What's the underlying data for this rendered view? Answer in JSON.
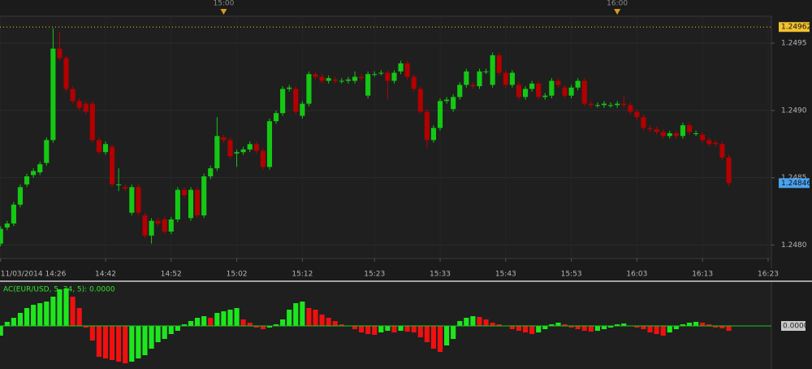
{
  "chart_data": [
    {
      "type": "candlestick",
      "xlim": [
        -0.09,
        117.5
      ],
      "ylim": [
        1.2479,
        1.2497
      ],
      "yticks": [
        {
          "value": 1.248,
          "label": "1.2480"
        },
        {
          "value": 1.2485,
          "label": "1.2485"
        },
        {
          "value": 1.249,
          "label": "1.2490"
        },
        1.2495
      ],
      "xticks": [
        {
          "value": 0,
          "label": "11/03/2014 14:26"
        },
        {
          "value": 16,
          "label": "14:42"
        },
        {
          "value": 26,
          "label": "14:52"
        },
        {
          "value": 36,
          "label": "15:02"
        },
        {
          "value": 46,
          "label": "15:12"
        },
        {
          "value": 57,
          "label": "15:23"
        },
        {
          "value": 67,
          "label": "15:33"
        },
        {
          "value": 77,
          "label": "15:43"
        },
        {
          "value": 87,
          "label": "15:53"
        },
        {
          "value": 97,
          "label": "16:03"
        },
        {
          "value": 107,
          "label": "16:13"
        },
        {
          "value": 117,
          "label": "16:23"
        }
      ],
      "top_markers": [
        {
          "value": 34,
          "label": "15:00"
        },
        {
          "value": 94,
          "label": "16:00"
        }
      ],
      "price_lines": [
        {
          "value": 1.24962,
          "color": "#f2c230",
          "dotted": true
        },
        {
          "value": 1.24846,
          "color": "#4aa3ef",
          "dotted": false
        }
      ],
      "grid": true,
      "up_color": "#14c814",
      "down_color": "#b30000",
      "open": [
        1.24801,
        1.24813,
        1.24816,
        1.2483,
        1.24845,
        1.24852,
        1.24854,
        1.24861,
        1.24878,
        1.24946,
        1.24939,
        1.24916,
        1.24907,
        1.24905,
        1.24905,
        1.24878,
        1.24869,
        1.24873,
        1.24845,
        1.24843,
        1.24824,
        1.24843,
        1.24822,
        1.24807,
        1.24818,
        1.24819,
        1.2481,
        1.24819,
        1.24841,
        1.2482,
        1.24841,
        1.24822,
        1.24851,
        1.24857,
        1.2488,
        1.24878,
        1.24868,
        1.24869,
        1.24871,
        1.24875,
        1.2487,
        1.24858,
        1.24892,
        1.24898,
        1.24916,
        1.24916,
        1.24896,
        1.24905,
        1.24927,
        1.24925,
        1.24922,
        1.24923,
        1.24922,
        1.24922,
        1.24922,
        1.24925,
        1.24911,
        1.24927,
        1.24928,
        1.24928,
        1.24922,
        1.24929,
        1.24935,
        1.24925,
        1.24916,
        1.24899,
        1.24878,
        1.24887,
        1.24907,
        1.24901,
        1.2491,
        1.24919,
        1.24919,
        1.24918,
        1.24929,
        1.24919,
        1.24941,
        1.24928,
        1.24919,
        1.24919,
        1.2491,
        1.24916,
        1.2492,
        1.2491,
        1.24911,
        1.24922,
        1.24917,
        1.24911,
        1.24917,
        1.24922,
        1.24905,
        1.24904,
        1.24904,
        1.24904,
        1.24904,
        1.24905,
        1.24904,
        1.24899,
        1.24895,
        1.24887,
        1.24886,
        1.24884,
        1.24881,
        1.24883,
        1.24881,
        1.24889,
        1.24883,
        1.24882,
        1.24878,
        1.24876,
        1.24875,
        1.24865
      ],
      "high": [
        1.24814,
        1.24818,
        1.24832,
        1.24845,
        1.24853,
        1.24857,
        1.24862,
        1.2488,
        1.24961,
        1.24958,
        1.24941,
        1.24918,
        1.24909,
        1.24907,
        1.24907,
        1.2488,
        1.24877,
        1.24875,
        1.24857,
        1.24845,
        1.24845,
        1.24845,
        1.24824,
        1.2482,
        1.2482,
        1.24821,
        1.24821,
        1.24843,
        1.24843,
        1.24843,
        1.24843,
        1.24853,
        1.24859,
        1.24895,
        1.24882,
        1.2488,
        1.24871,
        1.24873,
        1.24877,
        1.24877,
        1.24872,
        1.24894,
        1.249,
        1.24918,
        1.24919,
        1.24918,
        1.24907,
        1.24929,
        1.24929,
        1.24927,
        1.24926,
        1.24925,
        1.24924,
        1.24925,
        1.24929,
        1.24927,
        1.24929,
        1.24929,
        1.2493,
        1.2493,
        1.2493,
        1.24937,
        1.24937,
        1.24927,
        1.24918,
        1.24901,
        1.24889,
        1.24909,
        1.2491,
        1.24912,
        1.24921,
        1.24931,
        1.24921,
        1.24931,
        1.24931,
        1.24943,
        1.24943,
        1.2493,
        1.2493,
        1.24921,
        1.24918,
        1.24922,
        1.24922,
        1.24913,
        1.24924,
        1.24924,
        1.24919,
        1.24919,
        1.24924,
        1.24924,
        1.24907,
        1.24906,
        1.24907,
        1.24906,
        1.24907,
        1.24911,
        1.24906,
        1.24901,
        1.24897,
        1.24889,
        1.24888,
        1.24886,
        1.24885,
        1.24885,
        1.24891,
        1.24891,
        1.24885,
        1.24884,
        1.2488,
        1.24878,
        1.24877,
        1.24867
      ],
      "low": [
        1.24799,
        1.24811,
        1.24814,
        1.24828,
        1.24843,
        1.2485,
        1.24852,
        1.24859,
        1.24876,
        1.24937,
        1.24914,
        1.24905,
        1.249,
        1.24897,
        1.24876,
        1.24867,
        1.24867,
        1.24843,
        1.2484,
        1.2484,
        1.24822,
        1.24822,
        1.24805,
        1.24801,
        1.24814,
        1.24808,
        1.24808,
        1.24817,
        1.24835,
        1.24818,
        1.2482,
        1.2482,
        1.24849,
        1.24855,
        1.24876,
        1.24864,
        1.24858,
        1.24867,
        1.24869,
        1.24868,
        1.24856,
        1.24856,
        1.2489,
        1.24896,
        1.24914,
        1.24897,
        1.24894,
        1.24903,
        1.24923,
        1.2492,
        1.2492,
        1.2492,
        1.2492,
        1.2492,
        1.2492,
        1.24922,
        1.24909,
        1.24925,
        1.24926,
        1.24908,
        1.2492,
        1.24927,
        1.24923,
        1.24914,
        1.24897,
        1.24872,
        1.24876,
        1.24885,
        1.24905,
        1.24899,
        1.24908,
        1.24917,
        1.24916,
        1.24916,
        1.24927,
        1.24917,
        1.24926,
        1.24917,
        1.24917,
        1.24908,
        1.24908,
        1.24914,
        1.24908,
        1.24908,
        1.24909,
        1.24917,
        1.24909,
        1.24909,
        1.24915,
        1.24903,
        1.24902,
        1.24902,
        1.24902,
        1.24902,
        1.24902,
        1.24902,
        1.24897,
        1.24893,
        1.24885,
        1.24884,
        1.24882,
        1.24879,
        1.24879,
        1.24879,
        1.24879,
        1.24882,
        1.24881,
        1.24876,
        1.24873,
        1.24873,
        1.24863,
        1.24844
      ],
      "close": [
        1.24812,
        1.24816,
        1.2483,
        1.24843,
        1.24851,
        1.24855,
        1.2486,
        1.24878,
        1.24946,
        1.24939,
        1.24916,
        1.24907,
        1.24902,
        1.24899,
        1.24878,
        1.24869,
        1.24875,
        1.24845,
        1.24845,
        1.24842,
        1.24843,
        1.24824,
        1.24807,
        1.24818,
        1.24816,
        1.2481,
        1.24819,
        1.24841,
        1.24837,
        1.24841,
        1.24822,
        1.24851,
        1.24857,
        1.24881,
        1.24878,
        1.24866,
        1.24869,
        1.24871,
        1.24875,
        1.2487,
        1.24858,
        1.24892,
        1.24898,
        1.24916,
        1.24917,
        1.24899,
        1.24905,
        1.24927,
        1.24925,
        1.24922,
        1.24924,
        1.24922,
        1.24922,
        1.24923,
        1.24925,
        1.24924,
        1.24927,
        1.24927,
        1.24928,
        1.24922,
        1.24928,
        1.24935,
        1.24925,
        1.24916,
        1.24899,
        1.24878,
        1.24887,
        1.24907,
        1.24908,
        1.2491,
        1.24919,
        1.24929,
        1.24918,
        1.24929,
        1.24929,
        1.24941,
        1.24928,
        1.24919,
        1.24928,
        1.2491,
        1.24916,
        1.2492,
        1.2491,
        1.24911,
        1.24922,
        1.24919,
        1.24911,
        1.24917,
        1.24922,
        1.24905,
        1.24904,
        1.24904,
        1.24905,
        1.24904,
        1.24905,
        1.24904,
        1.24899,
        1.24895,
        1.24887,
        1.24886,
        1.24884,
        1.24881,
        1.24883,
        1.24881,
        1.24889,
        1.24884,
        1.24883,
        1.24878,
        1.24875,
        1.24875,
        1.24865,
        1.24846
      ]
    },
    {
      "type": "histogram-oscillator",
      "title": "AC(EUR/USD, 5, 34, 5): 0.0000",
      "xlim": [
        -0.09,
        117.5
      ],
      "ylim": [
        -0.000106,
        0.000108
      ],
      "yticks": [
        {
          "value": 0,
          "label": "0.0000"
        }
      ],
      "up_color": "#1ee61e",
      "down_color": "#f01010",
      "zero_color": "#19c819",
      "values": [
        -2.4e-05,
        1e-05,
        2e-05,
        3.2e-05,
        4.4e-05,
        5.2e-05,
        5.6e-05,
        6e-05,
        7.2e-05,
        9e-05,
        9.2e-05,
        7.2e-05,
        4.4e-05,
        -4e-06,
        -3.6e-05,
        -7.6e-05,
        -8e-05,
        -8.4e-05,
        -8.8e-05,
        -9.2e-05,
        -8.8e-05,
        -8e-05,
        -7.2e-05,
        -5.6e-05,
        -4e-05,
        -3.2e-05,
        -2e-05,
        -1.2e-05,
        4e-06,
        1.2e-05,
        2e-05,
        2.4e-05,
        2e-05,
        3.2e-05,
        3.6e-05,
        4e-05,
        4.4e-05,
        1.6e-05,
        8e-06,
        -4e-06,
        -8e-06,
        -4e-06,
        4e-06,
        1.6e-05,
        4e-05,
        5.6e-05,
        6e-05,
        4.4e-05,
        4e-05,
        2.8e-05,
        2e-05,
        1.2e-05,
        4e-06,
        0,
        -8e-06,
        -1.6e-05,
        -2e-05,
        -2.2e-05,
        -1.6e-05,
        -1.2e-05,
        -1.6e-05,
        -1.2e-05,
        -1.4e-05,
        -1.6e-05,
        -2.8e-05,
        -4e-05,
        -5.6e-05,
        -6.4e-05,
        -4.8e-05,
        -3.2e-05,
        1.2e-05,
        2e-05,
        2.4e-05,
        2.2e-05,
        1.6e-05,
        8e-06,
        4e-06,
        0,
        -8e-06,
        -1.2e-05,
        -1.6e-05,
        -2e-05,
        -1.6e-05,
        -8e-06,
        4e-06,
        8e-06,
        4e-06,
        -4e-06,
        -8e-06,
        -1.2e-05,
        -1.4e-05,
        -1.2e-05,
        -8e-06,
        -4e-06,
        4e-06,
        6e-06,
        0,
        -4e-06,
        -8e-06,
        -1.6e-05,
        -2e-05,
        -2.4e-05,
        -1.6e-05,
        -8e-06,
        4e-06,
        8e-06,
        1e-05,
        8e-06,
        4e-06,
        -4e-06,
        -6e-06,
        -1.2e-05
      ]
    }
  ]
}
